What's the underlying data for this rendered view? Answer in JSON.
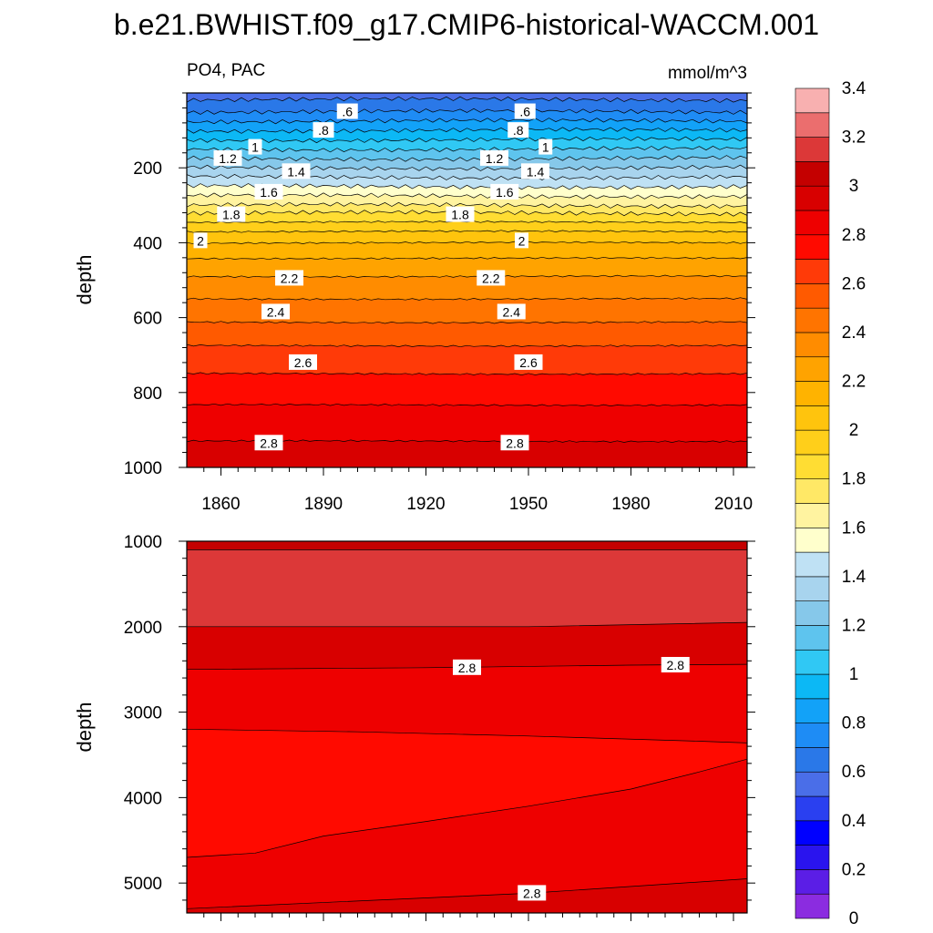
{
  "title": "b.e21.BWHIST.f09_g17.CMIP6-historical-WACCM.001",
  "colors": {
    "levels": [
      "#8b2ce0",
      "#5b1ee6",
      "#2a14ee",
      "#0000ff",
      "#2a40f0",
      "#4a6ee8",
      "#2a78e8",
      "#1e8cf5",
      "#12a2f8",
      "#0cb8f5",
      "#30c8f4",
      "#5ec4ee",
      "#86c8ea",
      "#a8d4ee",
      "#bfe1f4",
      "#ffffcc",
      "#fff3a0",
      "#ffe866",
      "#ffdd33",
      "#ffcf1a",
      "#ffc40d",
      "#ffb300",
      "#ffa300",
      "#ff8c00",
      "#ff7400",
      "#ff5a00",
      "#ff3a08",
      "#ff0a00",
      "#ee0000",
      "#d80000",
      "#c40000",
      "#dc3838",
      "#eb6e6e",
      "#f8b0b0"
    ],
    "line": "#000000",
    "label_bg": "#ffffff"
  },
  "chart_data": {
    "type": "heatmap",
    "variable_label": "PO4, PAC",
    "units_label": "mmol/m^3",
    "colorbar": {
      "tick_values": [
        0,
        0.2,
        0.4,
        0.6,
        0.8,
        1,
        1.2,
        1.4,
        1.6,
        1.8,
        2,
        2.2,
        2.4,
        2.6,
        2.8,
        3,
        3.2,
        3.4
      ],
      "tick_labels": [
        "0",
        "0.2",
        "0.4",
        "0.6",
        "0.8",
        "1",
        "1.2",
        "1.4",
        "1.6",
        "1.8",
        "2",
        "2.2",
        "2.4",
        "2.6",
        "2.8",
        "3",
        "3.2",
        "3.4"
      ]
    },
    "panels": [
      {
        "name": "upper",
        "ylabel": "depth",
        "ylim": [
          0,
          1000
        ],
        "y_reversed": true,
        "y_ticks": [
          200,
          400,
          600,
          800,
          1000
        ],
        "xlim": [
          1850,
          2014
        ],
        "x_ticks": [
          1860,
          1890,
          1920,
          1950,
          1980,
          2010
        ],
        "show_x_tick_labels": true,
        "profile_depths": [
          0,
          25,
          50,
          75,
          100,
          125,
          150,
          175,
          200,
          225,
          250,
          275,
          300,
          325,
          350,
          375,
          400,
          425,
          450,
          475,
          500,
          550,
          600,
          650,
          700,
          750,
          800,
          850,
          900,
          950,
          1000
        ],
        "profile_values": [
          0.45,
          0.52,
          0.6,
          0.7,
          0.8,
          0.9,
          1.0,
          1.1,
          1.2,
          1.3,
          1.4,
          1.5,
          1.6,
          1.72,
          1.82,
          1.92,
          2.0,
          2.06,
          2.12,
          2.17,
          2.22,
          2.3,
          2.38,
          2.46,
          2.54,
          2.6,
          2.66,
          2.72,
          2.77,
          2.82,
          2.86
        ],
        "contour_labels": [
          {
            "text": ".6",
            "x": 1897,
            "y": 50
          },
          {
            "text": ".6",
            "x": 1949,
            "y": 50
          },
          {
            "text": ".8",
            "x": 1890,
            "y": 100
          },
          {
            "text": ".8",
            "x": 1947,
            "y": 100
          },
          {
            "text": "1",
            "x": 1870,
            "y": 145
          },
          {
            "text": "1",
            "x": 1955,
            "y": 145
          },
          {
            "text": "1.2",
            "x": 1862,
            "y": 175
          },
          {
            "text": "1.2",
            "x": 1940,
            "y": 175
          },
          {
            "text": "1.4",
            "x": 1882,
            "y": 210
          },
          {
            "text": "1.4",
            "x": 1952,
            "y": 210
          },
          {
            "text": "1.6",
            "x": 1874,
            "y": 265
          },
          {
            "text": "1.6",
            "x": 1943,
            "y": 265
          },
          {
            "text": "1.8",
            "x": 1863,
            "y": 325
          },
          {
            "text": "1.8",
            "x": 1930,
            "y": 325
          },
          {
            "text": "2",
            "x": 1854,
            "y": 395
          },
          {
            "text": "2",
            "x": 1948,
            "y": 395
          },
          {
            "text": "2.2",
            "x": 1880,
            "y": 495
          },
          {
            "text": "2.2",
            "x": 1939,
            "y": 495
          },
          {
            "text": "2.4",
            "x": 1876,
            "y": 585
          },
          {
            "text": "2.4",
            "x": 1945,
            "y": 585
          },
          {
            "text": "2.6",
            "x": 1884,
            "y": 720
          },
          {
            "text": "2.6",
            "x": 1950,
            "y": 720
          },
          {
            "text": "2.8",
            "x": 1874,
            "y": 935
          },
          {
            "text": "2.8",
            "x": 1946,
            "y": 935
          }
        ]
      },
      {
        "name": "lower",
        "ylabel": "depth",
        "ylim": [
          1000,
          5350
        ],
        "y_reversed": true,
        "y_ticks": [
          1000,
          2000,
          3000,
          4000,
          5000
        ],
        "xlim": [
          1850,
          2014
        ],
        "x_ticks": [
          1860,
          1890,
          1920,
          1950,
          1980,
          2010
        ],
        "show_x_tick_labels": false,
        "bands": [
          {
            "value": 2.95,
            "top": [
              [
                1850,
                1000
              ],
              [
                2014,
                1000
              ]
            ],
            "bottom": [
              [
                1850,
                1100
              ],
              [
                2014,
                1100
              ]
            ]
          },
          {
            "value": 3.05,
            "top": [
              [
                1850,
                1100
              ],
              [
                2014,
                1100
              ]
            ],
            "bottom": [
              [
                1850,
                2000
              ],
              [
                1950,
                2000
              ],
              [
                2014,
                1950
              ]
            ]
          },
          {
            "value": 2.85,
            "top": [
              [
                1850,
                2000
              ],
              [
                1950,
                2000
              ],
              [
                2014,
                1950
              ]
            ],
            "bottom": [
              [
                1850,
                2500
              ],
              [
                1920,
                2480
              ],
              [
                1980,
                2450
              ],
              [
                2014,
                2440
              ]
            ]
          },
          {
            "value": 2.75,
            "top": [
              [
                1850,
                2500
              ],
              [
                1920,
                2480
              ],
              [
                1980,
                2450
              ],
              [
                2014,
                2440
              ]
            ],
            "bottom": [
              [
                1850,
                3200
              ],
              [
                1900,
                3230
              ],
              [
                1950,
                3280
              ],
              [
                2000,
                3340
              ],
              [
                2014,
                3360
              ]
            ]
          },
          {
            "value": 2.65,
            "top": [
              [
                1850,
                3200
              ],
              [
                1900,
                3230
              ],
              [
                1950,
                3280
              ],
              [
                2000,
                3340
              ],
              [
                2014,
                3360
              ]
            ],
            "bottom": [
              [
                1850,
                4700
              ],
              [
                1870,
                4650
              ],
              [
                1890,
                4450
              ],
              [
                1920,
                4280
              ],
              [
                1950,
                4100
              ],
              [
                1980,
                3900
              ],
              [
                2000,
                3700
              ],
              [
                2014,
                3550
              ]
            ]
          },
          {
            "value": 2.75,
            "top": [
              [
                1850,
                4700
              ],
              [
                1870,
                4650
              ],
              [
                1890,
                4450
              ],
              [
                1920,
                4280
              ],
              [
                1950,
                4100
              ],
              [
                1980,
                3900
              ],
              [
                2000,
                3700
              ],
              [
                2014,
                3550
              ]
            ],
            "bottom": [
              [
                1850,
                5300
              ],
              [
                1950,
                5120
              ],
              [
                2014,
                4950
              ]
            ]
          },
          {
            "value": 2.85,
            "top": [
              [
                1850,
                5300
              ],
              [
                1950,
                5120
              ],
              [
                2014,
                4950
              ]
            ],
            "bottom": [
              [
                1850,
                5350
              ],
              [
                2014,
                5350
              ]
            ]
          }
        ],
        "contour_labels": [
          {
            "text": "2.8",
            "x": 1932,
            "y": 2480
          },
          {
            "text": "2.8",
            "x": 1993,
            "y": 2450
          },
          {
            "text": "2.8",
            "x": 1951,
            "y": 5120
          }
        ]
      }
    ]
  }
}
